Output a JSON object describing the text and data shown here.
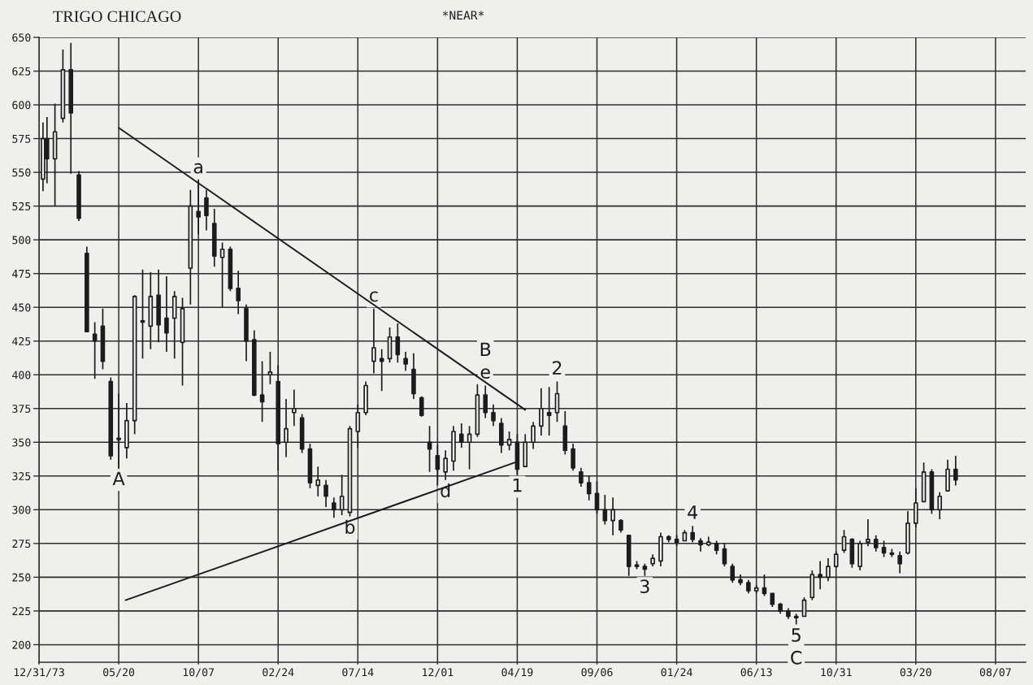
{
  "chart_data": {
    "type": "candlestick",
    "title": "TRIGO CHICAGO",
    "subtitle": "*NEAR*",
    "color": "#1c1c1c",
    "x": [
      "1974-01-07",
      "1974-01-14",
      "1974-01-28",
      "1974-02-11",
      "1974-02-25",
      "1974-03-11",
      "1974-03-25",
      "1974-04-08",
      "1974-04-22",
      "1974-05-06",
      "1974-05-20",
      "1974-06-03",
      "1974-06-17",
      "1974-07-01",
      "1974-07-15",
      "1974-07-29",
      "1974-08-12",
      "1974-08-26",
      "1974-09-09",
      "1974-09-23",
      "1974-10-07",
      "1974-10-21",
      "1974-11-04",
      "1974-11-18",
      "1974-12-02",
      "1974-12-16",
      "1974-12-30",
      "1975-01-13",
      "1975-01-27",
      "1975-02-10",
      "1975-02-24",
      "1975-03-10",
      "1975-03-24",
      "1975-04-07",
      "1975-04-21",
      "1975-05-05",
      "1975-05-19",
      "1975-06-02",
      "1975-06-16",
      "1975-06-30",
      "1975-07-14",
      "1975-07-28",
      "1975-08-11",
      "1975-08-25",
      "1975-09-08",
      "1975-09-22",
      "1975-10-06",
      "1975-10-20",
      "1975-11-03",
      "1975-11-17",
      "1975-12-01",
      "1975-12-15",
      "1975-12-29",
      "1976-01-12",
      "1976-01-26",
      "1976-02-09",
      "1976-02-23",
      "1976-03-08",
      "1976-03-22",
      "1976-04-05",
      "1976-04-19",
      "1976-05-03",
      "1976-05-17",
      "1976-05-31",
      "1976-06-14",
      "1976-06-28",
      "1976-07-12",
      "1976-07-26",
      "1976-08-09",
      "1976-08-23",
      "1976-09-06",
      "1976-09-20",
      "1976-10-04",
      "1976-10-18",
      "1976-11-01",
      "1976-11-15",
      "1976-11-29",
      "1976-12-13",
      "1976-12-27",
      "1977-01-10",
      "1977-01-24",
      "1977-02-07",
      "1977-02-21",
      "1977-03-07",
      "1977-03-21",
      "1977-04-04",
      "1977-04-18",
      "1977-05-02",
      "1977-05-16",
      "1977-05-30",
      "1977-06-13",
      "1977-06-27",
      "1977-07-11",
      "1977-07-25",
      "1977-08-08",
      "1977-08-22",
      "1977-09-05",
      "1977-09-19",
      "1977-10-03",
      "1977-10-17",
      "1977-10-31",
      "1977-11-14",
      "1977-11-28",
      "1977-12-12",
      "1977-12-26",
      "1978-01-09",
      "1978-01-23",
      "1978-02-06",
      "1978-02-20",
      "1978-03-06",
      "1978-03-20",
      "1978-04-03",
      "1978-04-17",
      "1978-05-01",
      "1978-05-15",
      "1978-05-29"
    ],
    "ohlc": [
      [
        545,
        587,
        536,
        575
      ],
      [
        575,
        591,
        542,
        560
      ],
      [
        560,
        601,
        525,
        580
      ],
      [
        590,
        641,
        587,
        626
      ],
      [
        626,
        646,
        549,
        594
      ],
      [
        548,
        551,
        514,
        516
      ],
      [
        490,
        495,
        432,
        432
      ],
      [
        430,
        439,
        397,
        425
      ],
      [
        436,
        449,
        404,
        410
      ],
      [
        395,
        398,
        337,
        340
      ],
      [
        352,
        386,
        331,
        353
      ],
      [
        346,
        379,
        338,
        366
      ],
      [
        366,
        459,
        356,
        458
      ],
      [
        440,
        478,
        412,
        439
      ],
      [
        436,
        476,
        419,
        458
      ],
      [
        459,
        478,
        424,
        437
      ],
      [
        442,
        473,
        417,
        431
      ],
      [
        442,
        462,
        412,
        458
      ],
      [
        424,
        457,
        392,
        449
      ],
      [
        479,
        537,
        452,
        525
      ],
      [
        521,
        544,
        504,
        517
      ],
      [
        531,
        537,
        507,
        518
      ],
      [
        512,
        523,
        480,
        488
      ],
      [
        487,
        498,
        450,
        493
      ],
      [
        493,
        495,
        462,
        464
      ],
      [
        464,
        477,
        445,
        455
      ],
      [
        449,
        452,
        410,
        425
      ],
      [
        426,
        433,
        384,
        385
      ],
      [
        385,
        410,
        365,
        380
      ],
      [
        400,
        417,
        393,
        402
      ],
      [
        395,
        407,
        329,
        349
      ],
      [
        350,
        382,
        339,
        360
      ],
      [
        372,
        389,
        362,
        375
      ],
      [
        368,
        371,
        342,
        345
      ],
      [
        345,
        349,
        316,
        320
      ],
      [
        318,
        332,
        310,
        322
      ],
      [
        318,
        322,
        302,
        310
      ],
      [
        305,
        309,
        294,
        300
      ],
      [
        300,
        326,
        296,
        310
      ],
      [
        298,
        362,
        295,
        360
      ],
      [
        358,
        378,
        346,
        372
      ],
      [
        372,
        395,
        370,
        392
      ],
      [
        410,
        449,
        401,
        420
      ],
      [
        412,
        419,
        388,
        410
      ],
      [
        412,
        435,
        409,
        428
      ],
      [
        428,
        438,
        409,
        415
      ],
      [
        412,
        417,
        403,
        408
      ],
      [
        404,
        416,
        382,
        386
      ],
      [
        383,
        384,
        369,
        370
      ],
      [
        350,
        362,
        328,
        345
      ],
      [
        340,
        348,
        318,
        330
      ],
      [
        328,
        344,
        322,
        338
      ],
      [
        336,
        362,
        329,
        358
      ],
      [
        356,
        364,
        346,
        350
      ],
      [
        350,
        362,
        330,
        356
      ],
      [
        356,
        393,
        354,
        385
      ],
      [
        385,
        392,
        368,
        372
      ],
      [
        372,
        378,
        362,
        366
      ],
      [
        364,
        368,
        342,
        348
      ],
      [
        348,
        358,
        344,
        352
      ],
      [
        350,
        356,
        326,
        330
      ],
      [
        332,
        356,
        332,
        350
      ],
      [
        350,
        365,
        345,
        362
      ],
      [
        362,
        390,
        355,
        375
      ],
      [
        372,
        391,
        355,
        370
      ],
      [
        372,
        395,
        365,
        386
      ],
      [
        362,
        373,
        341,
        344
      ],
      [
        345,
        349,
        329,
        331
      ],
      [
        328,
        331,
        317,
        320
      ],
      [
        320,
        325,
        307,
        312
      ],
      [
        312,
        321,
        297,
        300
      ],
      [
        300,
        311,
        289,
        292
      ],
      [
        292,
        309,
        281,
        300
      ],
      [
        292,
        293,
        283,
        285
      ],
      [
        281,
        281,
        251,
        258
      ],
      [
        259,
        262,
        256,
        258
      ],
      [
        258,
        260,
        251,
        256
      ],
      [
        260,
        267,
        258,
        264
      ],
      [
        262,
        283,
        258,
        280
      ],
      [
        280,
        281,
        276,
        278
      ],
      [
        278,
        281,
        273,
        276
      ],
      [
        277,
        285,
        277,
        283
      ],
      [
        283,
        288,
        276,
        278
      ],
      [
        277,
        279,
        269,
        274
      ],
      [
        274,
        280,
        273,
        276
      ],
      [
        275,
        277,
        267,
        270
      ],
      [
        271,
        275,
        258,
        260
      ],
      [
        258,
        260,
        246,
        248
      ],
      [
        248,
        252,
        244,
        246
      ],
      [
        246,
        248,
        238,
        240
      ],
      [
        240,
        244,
        238,
        242
      ],
      [
        242,
        252,
        236,
        238
      ],
      [
        238,
        238,
        228,
        230
      ],
      [
        230,
        231,
        223,
        225
      ],
      [
        225,
        227,
        219,
        221
      ],
      [
        221,
        223,
        215,
        220
      ],
      [
        221,
        235,
        221,
        233
      ],
      [
        235,
        255,
        233,
        252
      ],
      [
        252,
        262,
        241,
        250
      ],
      [
        250,
        264,
        247,
        258
      ],
      [
        258,
        269,
        257,
        267
      ],
      [
        270,
        285,
        268,
        280
      ],
      [
        278,
        279,
        257,
        260
      ],
      [
        258,
        277,
        255,
        275
      ],
      [
        276,
        293,
        273,
        278
      ],
      [
        278,
        281,
        269,
        272
      ],
      [
        272,
        277,
        265,
        268
      ],
      [
        268,
        271,
        265,
        267
      ],
      [
        266,
        269,
        253,
        260
      ],
      [
        268,
        299,
        267,
        290
      ],
      [
        290,
        316,
        287,
        305
      ],
      [
        306,
        335,
        306,
        328
      ],
      [
        328,
        330,
        297,
        300
      ],
      [
        300,
        313,
        293,
        310
      ],
      [
        314,
        337,
        314,
        330
      ],
      [
        330,
        340,
        318,
        322
      ]
    ],
    "series": [
      {
        "type": "line",
        "color": "#1c1c1c",
        "x": [
          "1974-05-20",
          "1976-05-03"
        ],
        "values": [
          583,
          374
        ]
      },
      {
        "type": "line",
        "color": "#1c1c1c",
        "x": [
          "1974-06-01",
          "1976-04-15"
        ],
        "values": [
          233,
          335
        ]
      }
    ],
    "xlim": [
      "1973-12-31",
      "1978-09-29"
    ],
    "xticks": [
      {
        "value": "1973-12-31",
        "label": "12/31/73"
      },
      {
        "value": "1974-05-20",
        "label": "05/20"
      },
      {
        "value": "1974-10-07",
        "label": "10/07"
      },
      {
        "value": "1975-02-24",
        "label": "02/24"
      },
      {
        "value": "1975-07-14",
        "label": "07/14"
      },
      {
        "value": "1975-12-01",
        "label": "12/01"
      },
      {
        "value": "1976-04-19",
        "label": "04/19"
      },
      {
        "value": "1976-09-06",
        "label": "09/06"
      },
      {
        "value": "1977-01-24",
        "label": "01/24"
      },
      {
        "value": "1977-06-13",
        "label": "06/13"
      },
      {
        "value": "1977-10-31",
        "label": "10/31"
      },
      {
        "value": "1978-03-20",
        "label": "03/20"
      },
      {
        "value": "1978-08-07",
        "label": "08/07"
      }
    ],
    "ylim": [
      187,
      650
    ],
    "yticks": [
      200,
      225,
      250,
      275,
      300,
      325,
      350,
      375,
      400,
      425,
      450,
      475,
      500,
      525,
      550,
      575,
      600,
      625,
      650
    ],
    "grid": true,
    "annotations": [
      {
        "text": "A",
        "x": "1974-05-20",
        "y": 331
      },
      {
        "text": "a",
        "x": "1974-10-07",
        "y": 544
      },
      {
        "text": "b",
        "x": "1975-06-30",
        "y": 295
      },
      {
        "text": "c",
        "x": "1975-08-11",
        "y": 449
      },
      {
        "text": "d",
        "x": "1975-12-15",
        "y": 322
      },
      {
        "text": "e",
        "x": "1976-02-23",
        "y": 392
      },
      {
        "text": "B",
        "x": "1976-02-23",
        "y": 392
      },
      {
        "text": "1",
        "x": "1976-04-19",
        "y": 326
      },
      {
        "text": "2",
        "x": "1976-06-28",
        "y": 395
      },
      {
        "text": "3",
        "x": "1976-11-29",
        "y": 251
      },
      {
        "text": "4",
        "x": "1977-02-21",
        "y": 288
      },
      {
        "text": "5",
        "x": "1977-08-22",
        "y": 215
      },
      {
        "text": "C",
        "x": "1977-08-22",
        "y": 215
      }
    ]
  }
}
